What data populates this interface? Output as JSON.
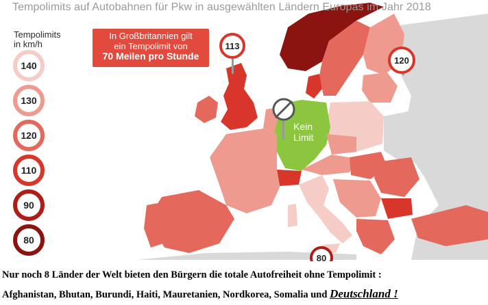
{
  "title": "Tempolimits auf Autobahnen für Pkw in ausgewählten Ländern Europas im Jahr 2018",
  "legend": {
    "title_line1": "Tempolimits",
    "title_line2": "in km/h",
    "items": [
      {
        "value": "140",
        "color": "#f6cdc6"
      },
      {
        "value": "130",
        "color": "#ee9a8e"
      },
      {
        "value": "120",
        "color": "#e4695c"
      },
      {
        "value": "110",
        "color": "#d9362b"
      },
      {
        "value": "90",
        "color": "#b01c16"
      },
      {
        "value": "80",
        "color": "#8b1410"
      }
    ]
  },
  "callout_uk": {
    "line1": "In Großbritannien gilt",
    "line2": "ein Tempolimit von",
    "line3": "70 Meilen pro Stunde"
  },
  "signs": {
    "uk": "113",
    "russia": "120",
    "sea": "80"
  },
  "germany_label": {
    "line1": "Kein",
    "line2": "Limit"
  },
  "colors": {
    "germany": "#8cc63f",
    "land_default": "#d9d9d9",
    "sea": "#ffffff"
  },
  "footer": {
    "line1": "Nur noch 8 Länder der Welt bieten den Bürgern die totale Autofreiheit ohne Tempolimit :",
    "line2_prefix": "Afghanistan, Bhutan, Burundi, Haiti, Mauretanien, Nordkorea, Somalia und ",
    "line2_highlight": "Deutschland !"
  }
}
